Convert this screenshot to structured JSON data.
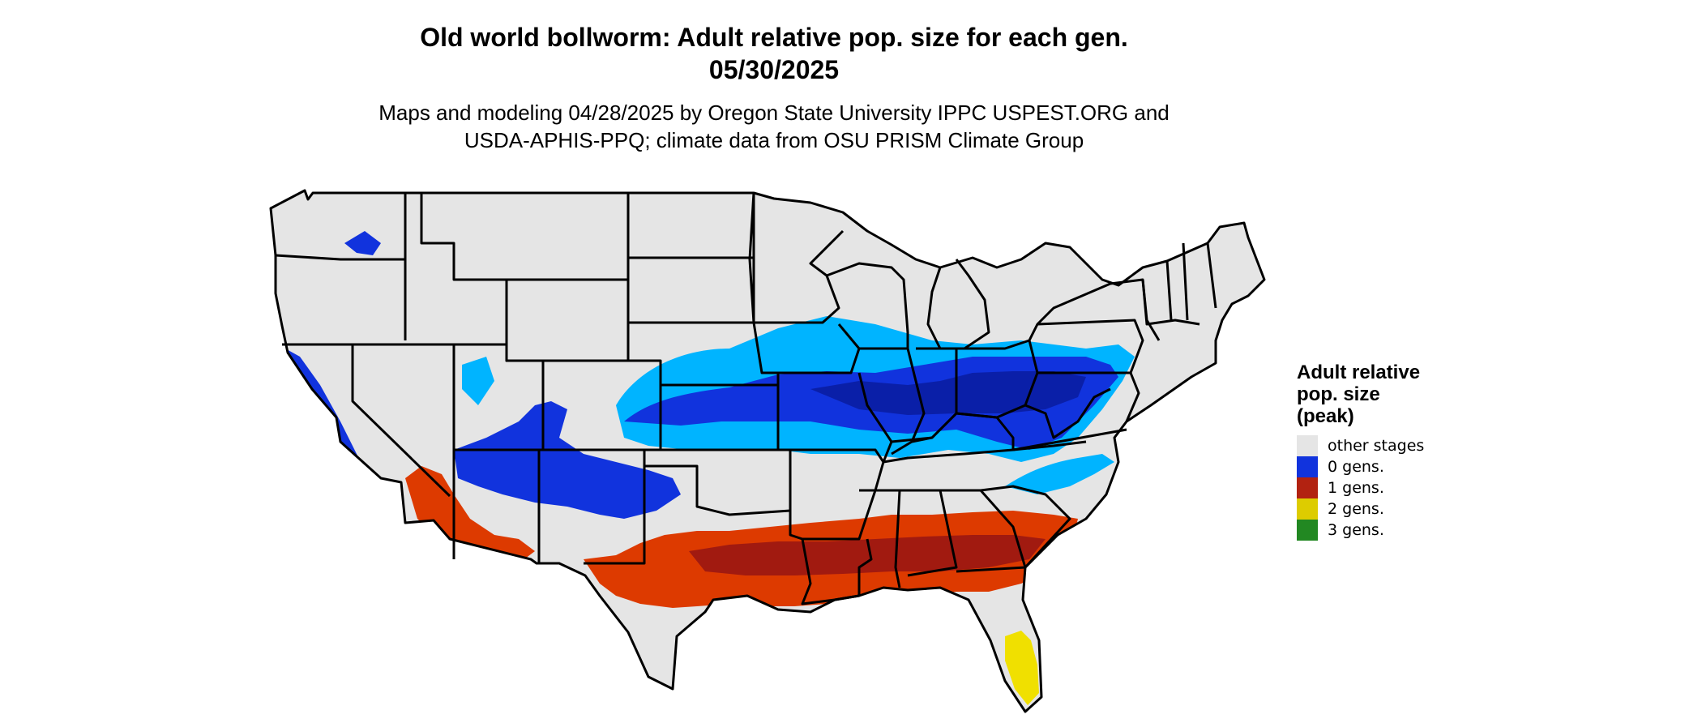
{
  "title_line1": "Old world bollworm: Adult relative pop. size for each gen.",
  "title_line2": "05/30/2025",
  "subtitle_line1": "Maps and modeling 04/28/2025 by Oregon State University IPPC USPEST.ORG and",
  "subtitle_line2": "USDA-APHIS-PPQ; climate data from OSU PRISM Climate Group",
  "legend": {
    "title_line1": "Adult relative",
    "title_line2": "pop. size",
    "title_line3": "(peak)",
    "items": [
      {
        "label": "other stages",
        "color": "#e5e5e5"
      },
      {
        "label": "0 gens.",
        "color": "#1133dd"
      },
      {
        "label": "1 gens.",
        "color": "#b22211"
      },
      {
        "label": "2 gens.",
        "color": "#ddcc00"
      },
      {
        "label": "3 gens.",
        "color": "#228822"
      }
    ]
  },
  "map_colors": {
    "land": "#e5e5e5",
    "border": "#000000",
    "light_blue": "#00b4ff",
    "blue": "#1133dd",
    "dark_blue": "#0a1fa8",
    "orange": "#dd3a00",
    "dark_red": "#a11a10",
    "yellow": "#f0e000"
  }
}
